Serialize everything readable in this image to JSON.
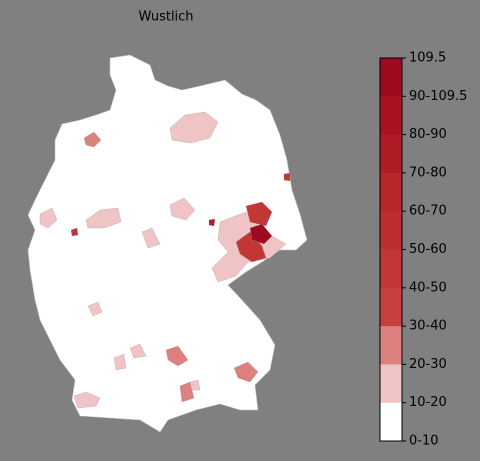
{
  "title": "Wustlich",
  "colorbar": {
    "labels": [
      "109.5",
      "90-109.5",
      "80-90",
      "70-80",
      "60-70",
      "50-60",
      "40-50",
      "30-40",
      "20-30",
      "10-20",
      "0-10"
    ],
    "colors": [
      "#9e0a1f",
      "#a8121f",
      "#b01c24",
      "#b8262a",
      "#be2e30",
      "#c23636",
      "#c6403e",
      "#dc8080",
      "#f0c4c4",
      "#ffffff"
    ]
  }
}
